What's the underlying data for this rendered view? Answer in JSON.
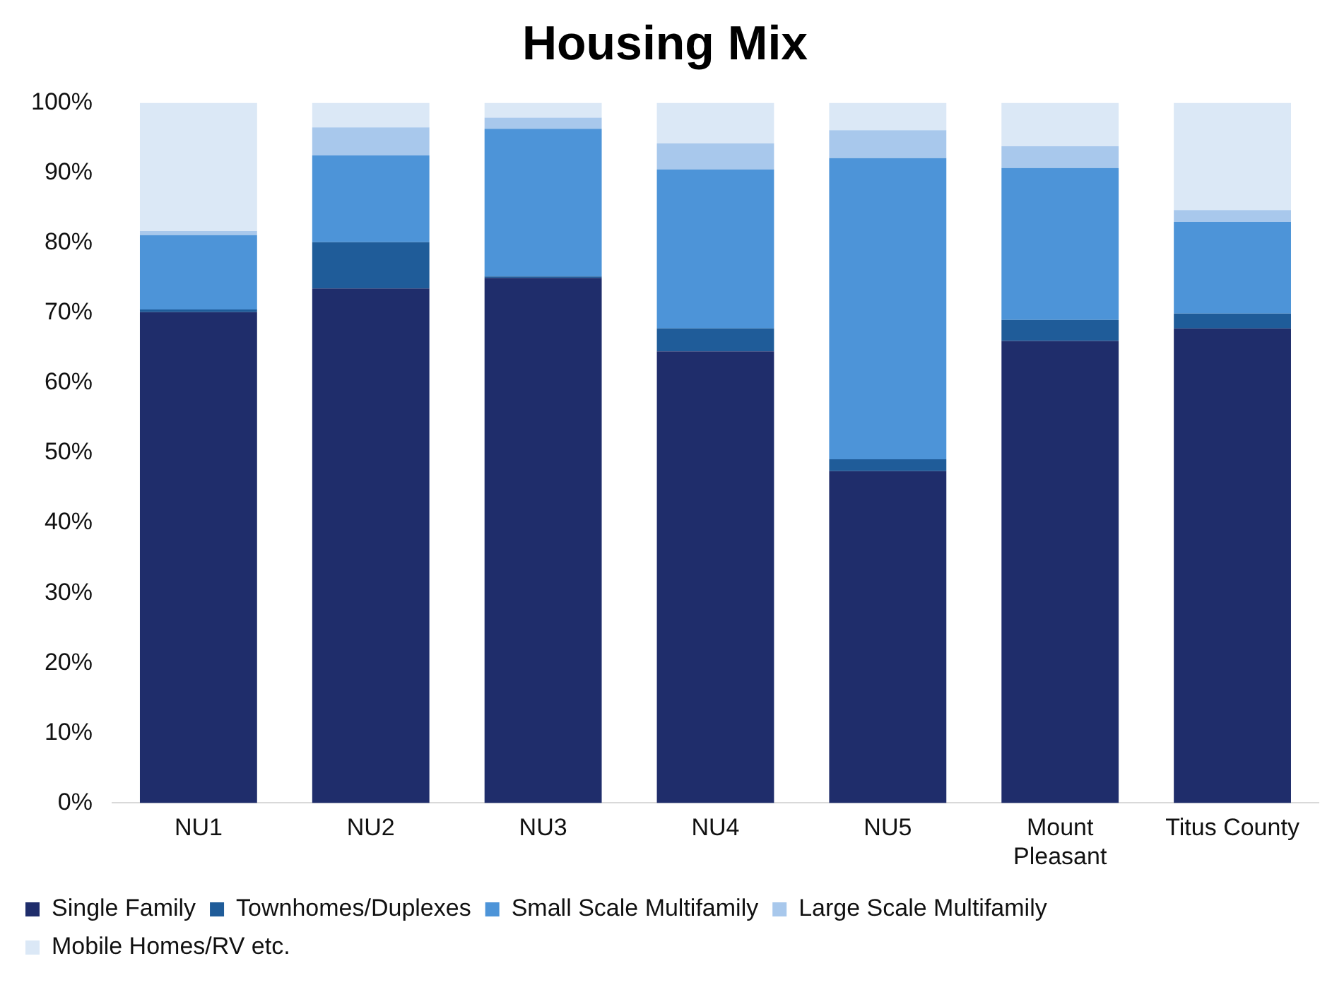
{
  "chart_data": {
    "type": "bar",
    "title": "Housing Mix",
    "stacked": true,
    "categories": [
      "NU1",
      "NU2",
      "NU3",
      "NU4",
      "NU5",
      "Mount Pleasant",
      "Titus County"
    ],
    "series": [
      {
        "name": "Single Family",
        "color": "#1f2d6b",
        "values": [
          70.1,
          73.5,
          75.0,
          64.5,
          47.4,
          66.0,
          67.8
        ]
      },
      {
        "name": "Townhomes/Duplexes",
        "color": "#1f5c99",
        "values": [
          0.4,
          6.6,
          0.2,
          3.3,
          1.7,
          3.0,
          2.1
        ]
      },
      {
        "name": "Small Scale Multifamily",
        "color": "#4d94d8",
        "values": [
          10.6,
          12.4,
          21.1,
          22.7,
          43.0,
          21.7,
          13.1
        ]
      },
      {
        "name": "Large Scale Multifamily",
        "color": "#a8c8ec",
        "values": [
          0.6,
          4.0,
          1.6,
          3.7,
          4.0,
          3.1,
          1.7
        ]
      },
      {
        "name": "Mobile Homes/RV etc.",
        "color": "#dbe8f6",
        "values": [
          18.3,
          3.5,
          2.1,
          5.8,
          3.9,
          6.2,
          15.3
        ]
      }
    ],
    "ylim": [
      0,
      100
    ],
    "yticks": [
      {
        "value": 0,
        "label": "0%"
      },
      {
        "value": 10,
        "label": "10%"
      },
      {
        "value": 20,
        "label": "20%"
      },
      {
        "value": 30,
        "label": "30%"
      },
      {
        "value": 40,
        "label": "40%"
      },
      {
        "value": 50,
        "label": "50%"
      },
      {
        "value": 60,
        "label": "60%"
      },
      {
        "value": 70,
        "label": "70%"
      },
      {
        "value": 80,
        "label": "80%"
      },
      {
        "value": 90,
        "label": "90%"
      },
      {
        "value": 100,
        "label": "100%"
      }
    ],
    "grid": false,
    "legend": "bottom"
  }
}
